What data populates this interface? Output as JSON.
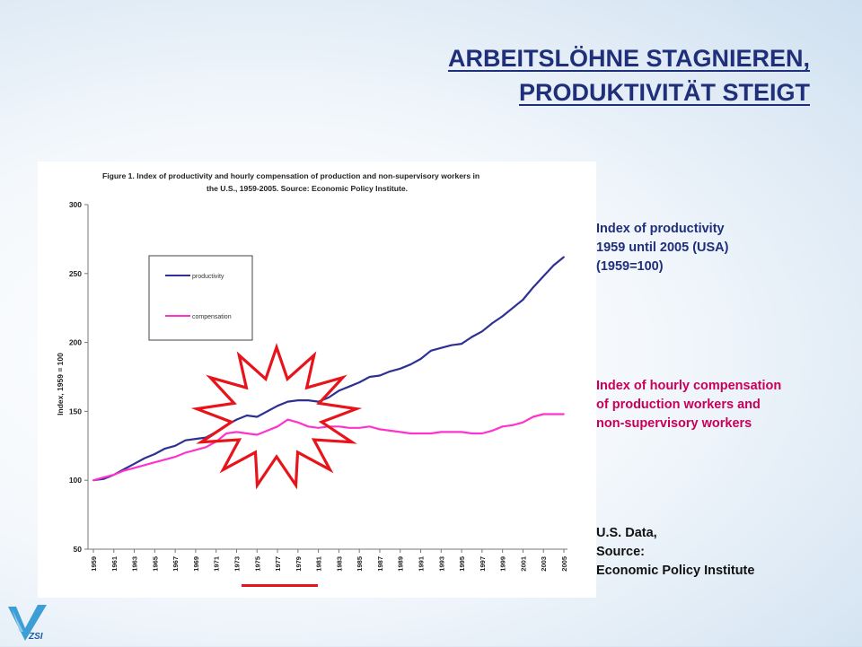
{
  "slide": {
    "title_line1": "ARBEITSLÖHNE  STAGNIEREN,",
    "title_line2": "PRODUKTIVITÄT  STEIGT",
    "notes": {
      "productivity": [
        "Index of productivity",
        "1959 until 2005 (USA)",
        "(1959=100)"
      ],
      "compensation": [
        "Index of hourly compensation",
        "of production workers and",
        "non-supervisory workers"
      ],
      "source": [
        "U.S. Data,",
        "Source:",
        "Economic Policy Institute"
      ]
    },
    "logo_text": "ZSI"
  },
  "chart_data": {
    "type": "line",
    "title": "Figure 1. Index of productivity and hourly compensation of production and non-supervisory workers in the U.S., 1959-2005. Source: Economic Policy Institute.",
    "title_line1": "Figure 1. Index of productivity and hourly compensation of production and non-supervisory workers in",
    "title_line2": "the U.S., 1959-2005. Source: Economic Policy Institute.",
    "ylabel": "Index, 1959 = 100",
    "xlabel": "",
    "ylim": [
      50,
      300
    ],
    "yticks": [
      50,
      100,
      150,
      200,
      250,
      300
    ],
    "x_tick_labels": [
      "1959",
      "1961",
      "1963",
      "1965",
      "1967",
      "1969",
      "1971",
      "1973",
      "1975",
      "1977",
      "1979",
      "1981",
      "1983",
      "1985",
      "1987",
      "1989",
      "1991",
      "1993",
      "1995",
      "1997",
      "1999",
      "2001",
      "2003",
      "2005"
    ],
    "grid": false,
    "legend_position": "upper-left",
    "x": [
      1959,
      1960,
      1961,
      1962,
      1963,
      1964,
      1965,
      1966,
      1967,
      1968,
      1969,
      1970,
      1971,
      1972,
      1973,
      1974,
      1975,
      1976,
      1977,
      1978,
      1979,
      1980,
      1981,
      1982,
      1983,
      1984,
      1985,
      1986,
      1987,
      1988,
      1989,
      1990,
      1991,
      1992,
      1993,
      1994,
      1995,
      1996,
      1997,
      1998,
      1999,
      2000,
      2001,
      2002,
      2003,
      2004,
      2005
    ],
    "series": [
      {
        "name": "productivity",
        "color": "#2e3192",
        "values": [
          100,
          101,
          104,
          108,
          112,
          116,
          119,
          123,
          125,
          129,
          130,
          131,
          135,
          140,
          144,
          147,
          146,
          150,
          154,
          157,
          158,
          158,
          157,
          160,
          165,
          168,
          171,
          175,
          176,
          179,
          181,
          184,
          188,
          194,
          196,
          198,
          199,
          204,
          208,
          214,
          219,
          225,
          231,
          240,
          248,
          256,
          262
        ]
      },
      {
        "name": "compensation",
        "color": "#ff33cc",
        "values": [
          100,
          102,
          104,
          107,
          109,
          111,
          113,
          115,
          117,
          120,
          122,
          124,
          128,
          134,
          135,
          134,
          133,
          136,
          139,
          144,
          142,
          139,
          138,
          139,
          139,
          138,
          138,
          139,
          137,
          136,
          135,
          134,
          134,
          134,
          135,
          135,
          135,
          134,
          134,
          136,
          139,
          140,
          142,
          146,
          148,
          148,
          148
        ]
      }
    ],
    "annotations": {
      "burst": "red jagged burst marking the 1973-1983 divergence",
      "underline": "red bar under x labels 1975-1981"
    }
  }
}
